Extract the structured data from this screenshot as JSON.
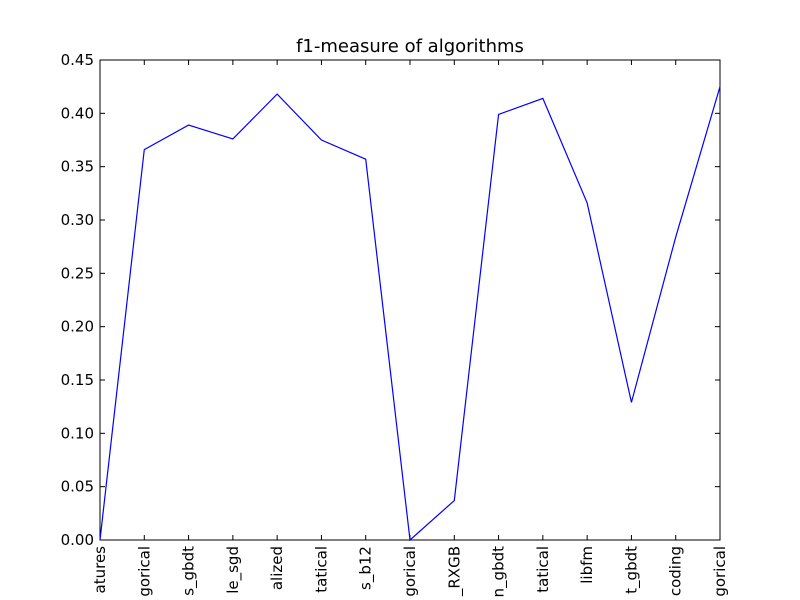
{
  "chart_data": {
    "type": "line",
    "title": "f1-measure of algorithms",
    "xlabel": "",
    "ylabel": "",
    "ylim": [
      0,
      0.45
    ],
    "yticks": [
      "0.00",
      "0.05",
      "0.10",
      "0.15",
      "0.20",
      "0.25",
      "0.30",
      "0.35",
      "0.40",
      "0.45"
    ],
    "categories": [
      "atures",
      "gorical",
      "s_gbdt",
      "le_sgd",
      "alized",
      "tatical",
      "s_b12",
      "gorical",
      "_RXGB",
      "n_gbdt",
      "tatical",
      "libfm",
      "t_gbdt",
      "coding",
      "gorical"
    ],
    "series": [
      {
        "name": "",
        "color": "#0000ff",
        "values": [
          0.0,
          0.366,
          0.389,
          0.376,
          0.418,
          0.375,
          0.357,
          0.0,
          0.037,
          0.399,
          0.414,
          0.316,
          0.129,
          0.284,
          0.425
        ]
      }
    ],
    "grid": false,
    "legend": "none"
  }
}
